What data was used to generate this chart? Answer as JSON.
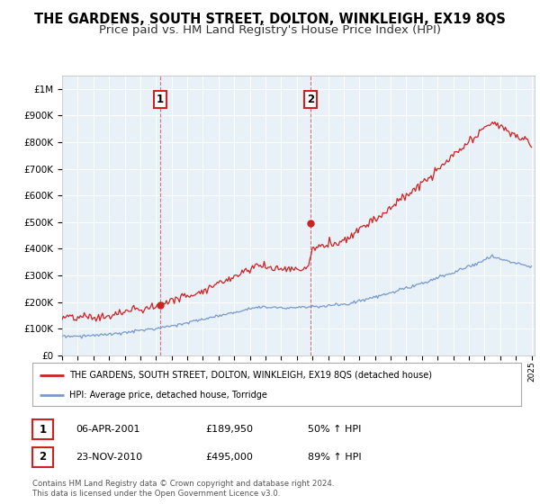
{
  "title": "THE GARDENS, SOUTH STREET, DOLTON, WINKLEIGH, EX19 8QS",
  "subtitle": "Price paid vs. HM Land Registry's House Price Index (HPI)",
  "title_fontsize": 10.5,
  "subtitle_fontsize": 9.5,
  "background_color": "#ffffff",
  "plot_bg_color": "#e8f0f8",
  "grid_color": "#ffffff",
  "ylim": [
    0,
    1050000
  ],
  "yticks": [
    0,
    100000,
    200000,
    300000,
    400000,
    500000,
    600000,
    700000,
    800000,
    900000,
    1000000
  ],
  "ytick_labels": [
    "£0",
    "£100K",
    "£200K",
    "£300K",
    "£400K",
    "£500K",
    "£600K",
    "£700K",
    "£800K",
    "£900K",
    "£1M"
  ],
  "sale1_date_num": 2001.25,
  "sale1_price": 189950,
  "sale1_label": "1",
  "sale2_date_num": 2010.9,
  "sale2_price": 495000,
  "sale2_label": "2",
  "red_line_color": "#cc2222",
  "blue_line_color": "#7799cc",
  "annotation_box_color": "#cc2222",
  "legend_label_red": "THE GARDENS, SOUTH STREET, DOLTON, WINKLEIGH, EX19 8QS (detached house)",
  "legend_label_blue": "HPI: Average price, detached house, Torridge",
  "table_row1": [
    "1",
    "06-APR-2001",
    "£189,950",
    "50% ↑ HPI"
  ],
  "table_row2": [
    "2",
    "23-NOV-2010",
    "£495,000",
    "89% ↑ HPI"
  ],
  "footnote": "Contains HM Land Registry data © Crown copyright and database right 2024.\nThis data is licensed under the Open Government Licence v3.0.",
  "xstart": 1995.0,
  "xend": 2025.2
}
